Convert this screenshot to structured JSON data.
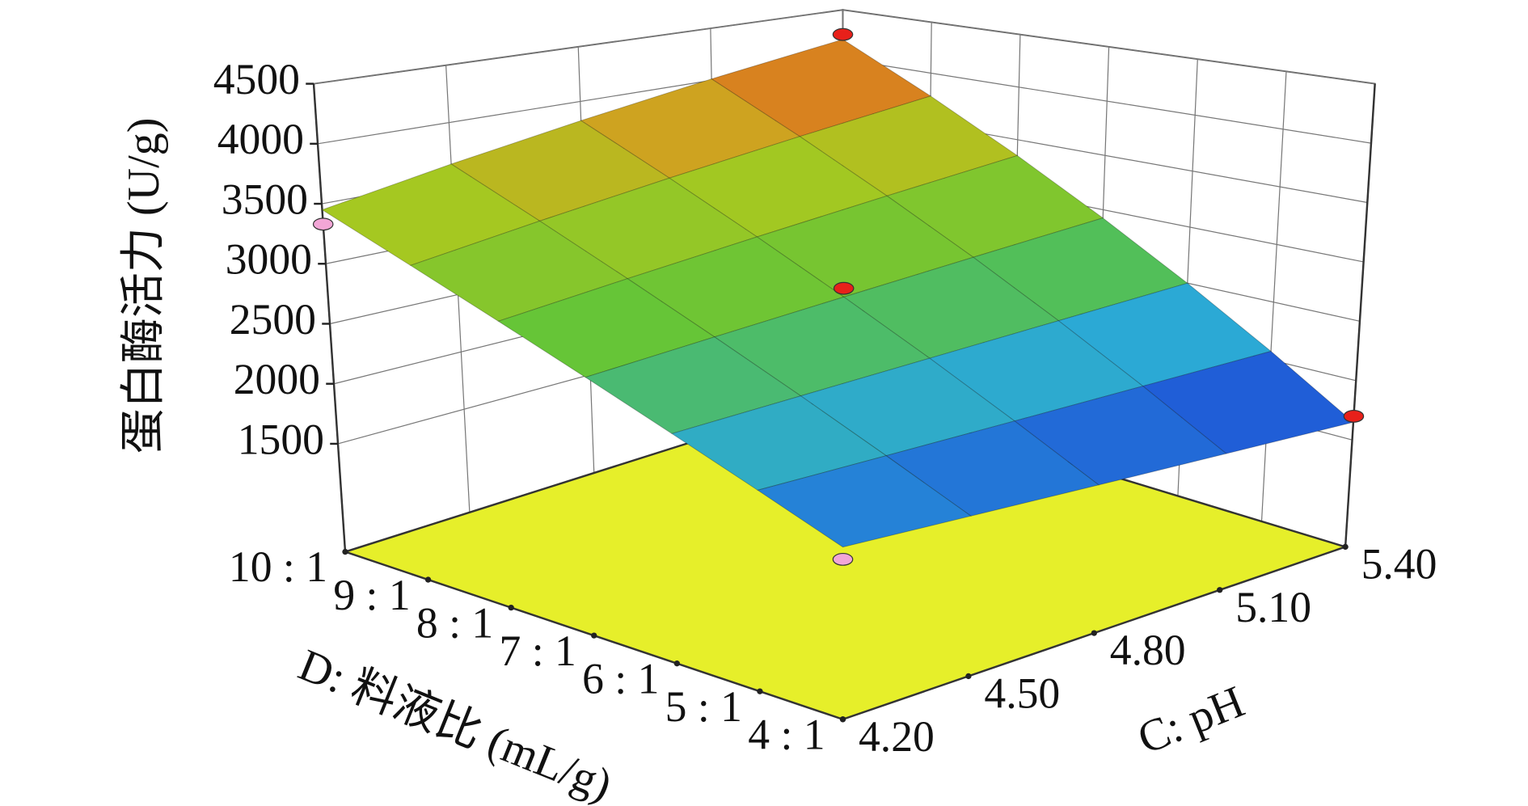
{
  "chart_data": {
    "type": "surface",
    "z_label": "蛋白酶活力 (U/g)",
    "x_label": "D: 料液比 (mL/g)",
    "y_label": "C: pH",
    "x_categories": [
      "4 : 1",
      "5 : 1",
      "6 : 1",
      "7 : 1",
      "8 : 1",
      "9 : 1",
      "10 : 1"
    ],
    "ylim": [
      4.2,
      5.4
    ],
    "yticks": [
      {
        "value": 4.2,
        "label": "4.20"
      },
      {
        "value": 4.5,
        "label": "4.50"
      },
      {
        "value": 4.8,
        "label": "4.80"
      },
      {
        "value": 5.1,
        "label": "5.10"
      },
      {
        "value": 5.4,
        "label": "5.40"
      }
    ],
    "zlim": [
      600,
      4500
    ],
    "zticks": [
      1500,
      2000,
      2500,
      3000,
      3500,
      4000,
      4500
    ],
    "z": [
      [
        2000,
        2242,
        2483,
        2725,
        2967,
        3208,
        3450
      ],
      [
        1913,
        2200,
        2488,
        2775,
        3063,
        3350,
        3638
      ],
      [
        1825,
        2158,
        2492,
        2825,
        3158,
        3492,
        3825
      ],
      [
        1738,
        2117,
        2496,
        2875,
        3254,
        3633,
        4013
      ],
      [
        1650,
        2075,
        2500,
        2925,
        3350,
        3775,
        4200
      ]
    ],
    "floor_color": "#e6ef2a",
    "points": [
      {
        "x": "10 : 1",
        "y": 5.4,
        "z": 4250,
        "color": "#e8201a"
      },
      {
        "x": "7 : 1",
        "y": 4.8,
        "z": 2900,
        "color": "#e8201a"
      },
      {
        "x": "10 : 1",
        "y": 4.2,
        "z": 3330,
        "color": "#f2a6d6"
      },
      {
        "x": "4 : 1",
        "y": 5.4,
        "z": 1700,
        "color": "#e8201a"
      },
      {
        "x": "4 : 1",
        "y": 4.2,
        "z": 1900,
        "color": "#f2a6d6"
      }
    ]
  }
}
